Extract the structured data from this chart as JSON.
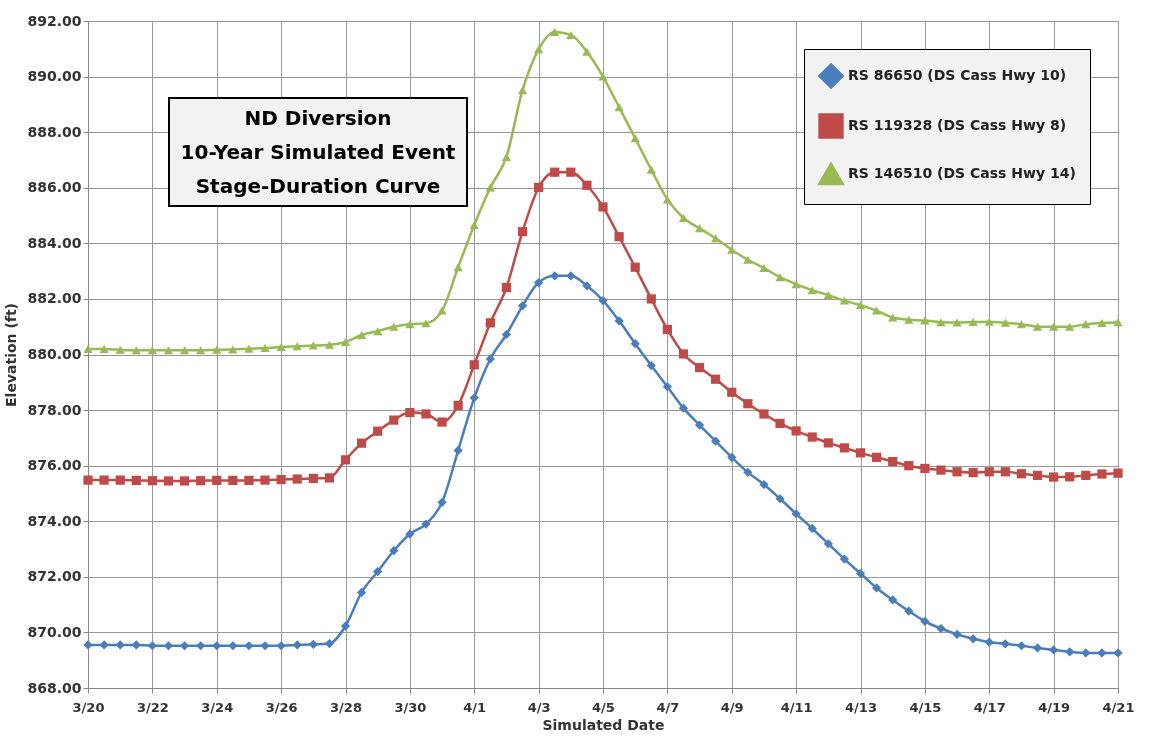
{
  "chart_data": {
    "type": "line",
    "title": "ND Diversion\n10-Year Simulated Event\nStage-Duration Curve",
    "xlabel": "Simulated Date",
    "ylabel": "Elevation (ft)",
    "categories": [
      "3/20",
      null,
      null,
      null,
      "3/22",
      null,
      null,
      null,
      "3/24",
      null,
      null,
      null,
      "3/26",
      null,
      null,
      null,
      "3/28",
      null,
      null,
      null,
      "3/30",
      null,
      null,
      null,
      "4/1",
      null,
      null,
      null,
      "4/3",
      null,
      null,
      null,
      "4/5",
      null,
      null,
      null,
      "4/7",
      null,
      null,
      null,
      "4/9",
      null,
      null,
      null,
      "4/11",
      null,
      null,
      null,
      "4/13",
      null,
      null,
      null,
      "4/15",
      null,
      null,
      null,
      "4/17",
      null,
      null,
      null,
      "4/19",
      null,
      null,
      null,
      "4/21"
    ],
    "ylim": [
      868,
      892
    ],
    "yticks": [
      {
        "value": 868,
        "label": "868.00"
      },
      {
        "value": 870,
        "label": "870.00"
      },
      {
        "value": 872,
        "label": "872.00"
      },
      {
        "value": 874,
        "label": "874.00"
      },
      {
        "value": 876,
        "label": "876.00"
      },
      {
        "value": 878,
        "label": "878.00"
      },
      {
        "value": 880,
        "label": "880.00"
      },
      {
        "value": 882,
        "label": "882.00"
      },
      {
        "value": 884,
        "label": "884.00"
      },
      {
        "value": 886,
        "label": "886.00"
      },
      {
        "value": 888,
        "label": "888.00"
      },
      {
        "value": 890,
        "label": "890.00"
      },
      {
        "value": 892,
        "label": "892.00"
      }
    ],
    "grid": true,
    "legend": "top right",
    "series": [
      {
        "name": "RS 86650 (DS Cass Hwy 10)",
        "color": "#4a7ebb",
        "marker": "diamond",
        "values": [
          869.55,
          869.55,
          869.55,
          869.55,
          869.52,
          869.52,
          869.52,
          869.52,
          869.52,
          869.52,
          869.52,
          869.52,
          869.52,
          869.55,
          869.57,
          869.6,
          870.23,
          871.44,
          872.19,
          872.94,
          873.54,
          873.9,
          874.68,
          876.55,
          878.44,
          879.84,
          880.72,
          881.75,
          882.59,
          882.83,
          882.83,
          882.47,
          881.94,
          881.21,
          880.39,
          879.6,
          878.84,
          878.07,
          877.46,
          876.88,
          876.3,
          875.76,
          875.32,
          874.81,
          874.27,
          873.74,
          873.19,
          872.64,
          872.12,
          871.6,
          871.17,
          870.77,
          870.4,
          870.14,
          869.93,
          869.77,
          869.65,
          869.59,
          869.52,
          869.44,
          869.37,
          869.3,
          869.26,
          869.26,
          869.26
        ]
      },
      {
        "name": "RS 119328 (DS Cass Hwy 8)",
        "color": "#be4b48",
        "marker": "square",
        "values": [
          875.48,
          875.48,
          875.48,
          875.47,
          875.46,
          875.45,
          875.45,
          875.46,
          875.47,
          875.47,
          875.47,
          875.48,
          875.5,
          875.52,
          875.54,
          875.56,
          876.21,
          876.81,
          877.24,
          877.64,
          877.91,
          877.86,
          877.57,
          878.17,
          879.63,
          881.14,
          882.41,
          884.42,
          886.01,
          886.56,
          886.56,
          886.09,
          885.31,
          884.24,
          883.14,
          882.0,
          880.9,
          880.02,
          879.53,
          879.11,
          878.64,
          878.23,
          877.86,
          877.52,
          877.25,
          877.03,
          876.82,
          876.64,
          876.46,
          876.3,
          876.15,
          876.0,
          875.9,
          875.84,
          875.78,
          875.75,
          875.78,
          875.78,
          875.71,
          875.65,
          875.59,
          875.6,
          875.65,
          875.7,
          875.73
        ]
      },
      {
        "name": "RS 146510 (DS Cass Hwy 14)",
        "color": "#98b954",
        "marker": "triangle",
        "values": [
          880.2,
          880.2,
          880.17,
          880.15,
          880.15,
          880.15,
          880.15,
          880.15,
          880.17,
          880.18,
          880.21,
          880.23,
          880.27,
          880.3,
          880.32,
          880.35,
          880.45,
          880.7,
          880.84,
          881.0,
          881.09,
          881.12,
          881.58,
          883.14,
          884.66,
          886.01,
          887.11,
          889.51,
          890.98,
          891.6,
          891.5,
          890.89,
          890.0,
          888.9,
          887.78,
          886.65,
          885.58,
          884.91,
          884.54,
          884.18,
          883.77,
          883.41,
          883.11,
          882.78,
          882.53,
          882.31,
          882.14,
          881.94,
          881.77,
          881.58,
          881.33,
          881.25,
          881.22,
          881.16,
          881.15,
          881.17,
          881.18,
          881.14,
          881.09,
          881.0,
          881.0,
          881.0,
          881.09,
          881.13,
          881.16
        ]
      }
    ]
  }
}
